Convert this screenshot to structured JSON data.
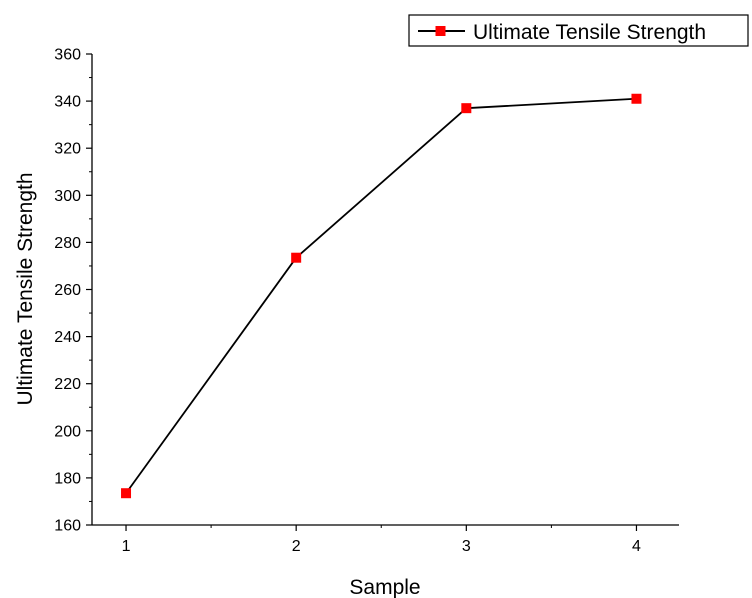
{
  "chart_data": {
    "type": "line",
    "title": "",
    "xlabel": "Sample",
    "ylabel": "Ultimate Tensile Strength",
    "x": [
      1,
      2,
      3,
      4
    ],
    "x_tick_labels": [
      "1",
      "2",
      "3",
      "4"
    ],
    "xlim": [
      0.8,
      4.25
    ],
    "ylim": [
      160,
      360
    ],
    "y_ticks": [
      160,
      180,
      200,
      220,
      240,
      260,
      280,
      300,
      320,
      340,
      360
    ],
    "grid": false,
    "legend_position": "top-right",
    "series": [
      {
        "name": "Ultimate Tensile Strength",
        "values": [
          173.5,
          273.5,
          337,
          341
        ],
        "line_color": "#000000",
        "marker": "square",
        "marker_color": "#ff0000"
      }
    ]
  }
}
